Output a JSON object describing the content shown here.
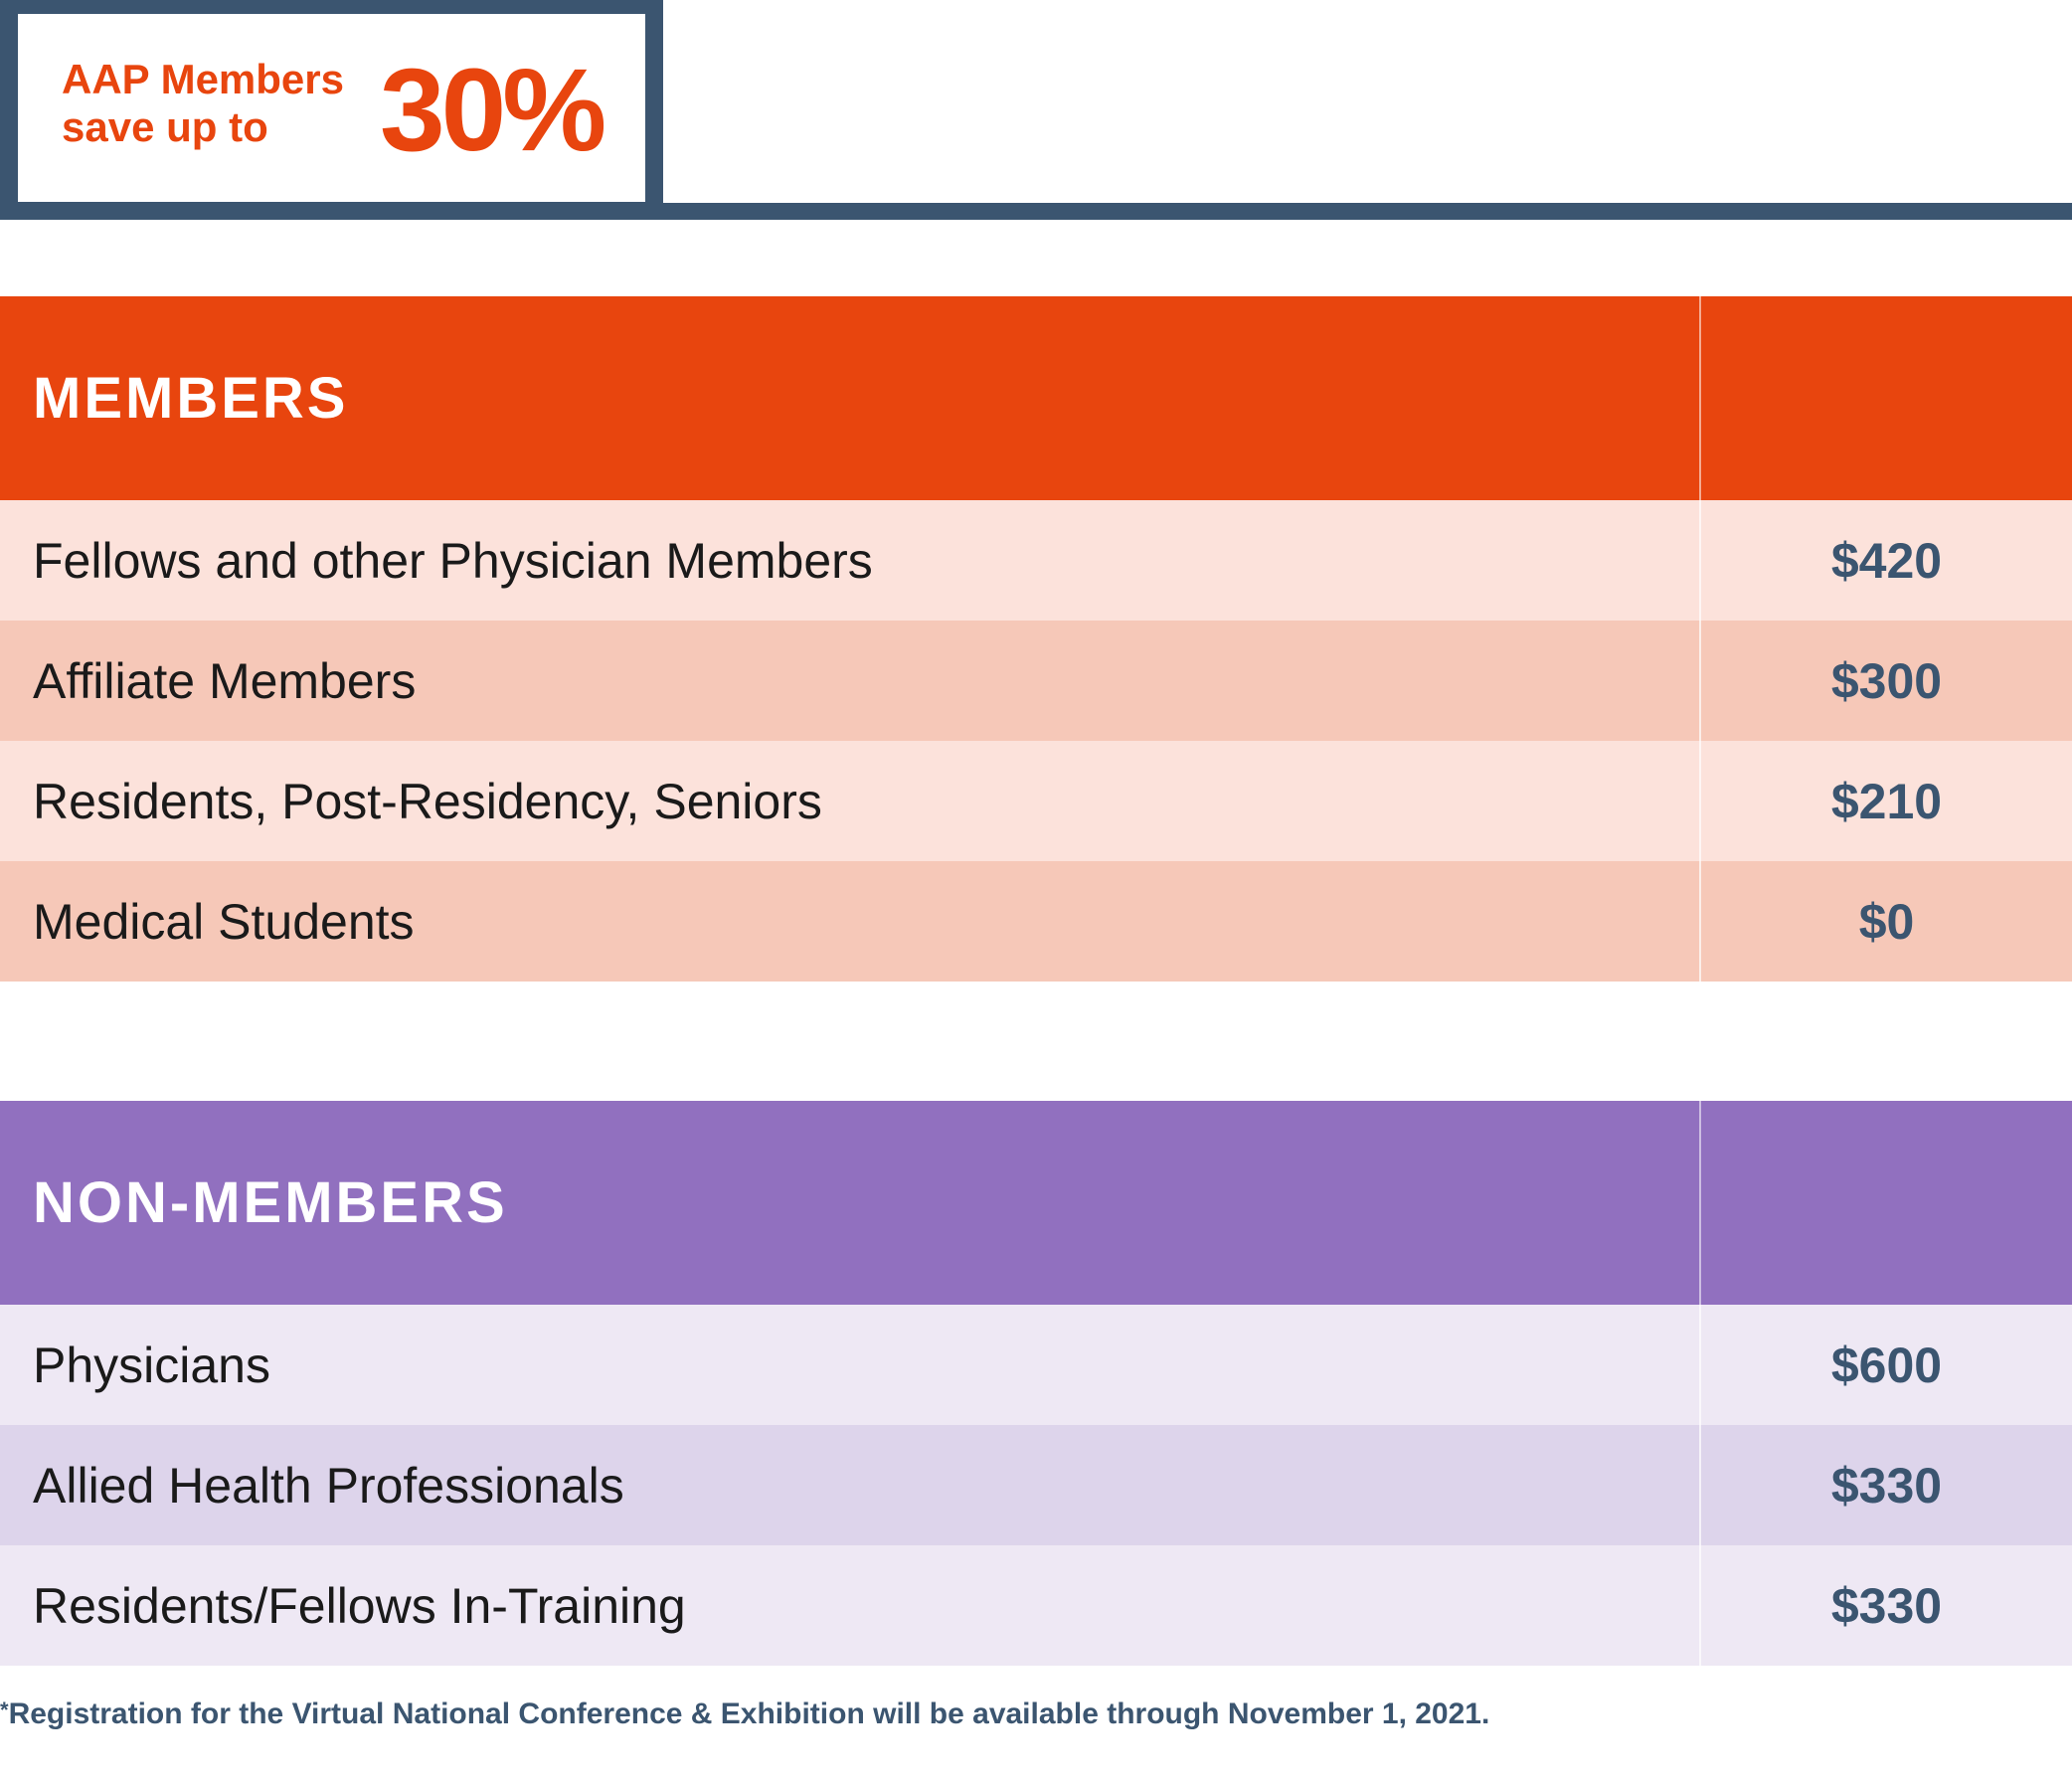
{
  "promo": {
    "line1": "AAP Members",
    "line2": "save up to",
    "percent": "30%"
  },
  "members": {
    "title": "MEMBERS",
    "rows": [
      {
        "label": "Fellows and other Physician Members",
        "price": "$420"
      },
      {
        "label": "Affiliate Members",
        "price": "$300"
      },
      {
        "label": "Residents, Post-Residency, Seniors",
        "price": "$210"
      },
      {
        "label": "Medical Students",
        "price": "$0"
      }
    ]
  },
  "nonmembers": {
    "title": "NON-MEMBERS",
    "rows": [
      {
        "label": "Physicians",
        "price": "$600"
      },
      {
        "label": "Allied Health Professionals",
        "price": "$330"
      },
      {
        "label": "Residents/Fellows In-Training",
        "price": "$330"
      }
    ]
  },
  "footnote": {
    "marker": "*",
    "text": "Registration for the Virtual National Conference & Exhibition will be available through November 1, 2021."
  },
  "colors": {
    "accent_orange": "#e8450e",
    "accent_purple": "#9170bf",
    "navy": "#3b5570"
  }
}
